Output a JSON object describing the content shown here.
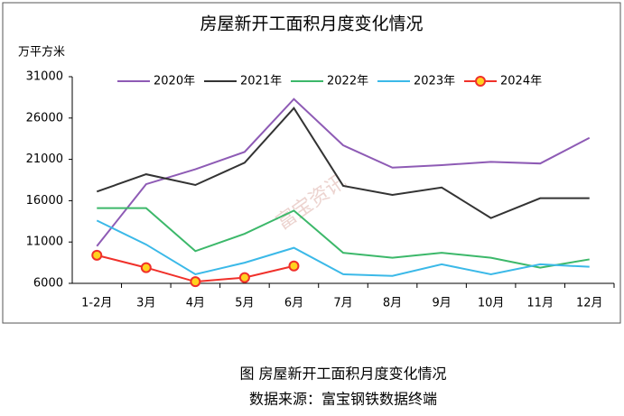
{
  "chart_data": {
    "type": "line",
    "title": "房屋新开工面积月度变化情况",
    "y_label": "万平方米",
    "watermark": "富宝资讯",
    "categories": [
      "1-2月",
      "3月",
      "4月",
      "5月",
      "6月",
      "7月",
      "8月",
      "9月",
      "10月",
      "11月",
      "12月"
    ],
    "series": [
      {
        "name": "2020年",
        "color": "#8e5bb5",
        "values": [
          10500,
          18000,
          19800,
          21900,
          28300,
          22700,
          20000,
          20300,
          20700,
          20500,
          23600
        ]
      },
      {
        "name": "2021年",
        "color": "#333333",
        "values": [
          17100,
          19200,
          17900,
          20600,
          27200,
          17800,
          16700,
          17600,
          13900,
          16300,
          16300
        ]
      },
      {
        "name": "2022年",
        "color": "#3cb86a",
        "values": [
          15100,
          15100,
          9900,
          12000,
          14800,
          9700,
          9100,
          9700,
          9100,
          7900,
          8900
        ]
      },
      {
        "name": "2023年",
        "color": "#3bb9e8",
        "values": [
          13600,
          10700,
          7100,
          8500,
          10300,
          7100,
          6900,
          8300,
          7100,
          8300,
          8000
        ]
      },
      {
        "name": "2024年",
        "color": "#f0302a",
        "marker": "circle",
        "marker_fill": "#ffd21f",
        "values": [
          9400,
          7900,
          6200,
          6700,
          8100,
          null,
          null,
          null,
          null,
          null,
          null
        ]
      }
    ],
    "ylim": [
      6000,
      31000
    ],
    "yticks": [
      6000,
      11000,
      16000,
      21000,
      26000,
      31000
    ],
    "legend": "top",
    "caption": [
      "图  房屋新开工面积月度变化情况",
      "数据来源：富宝钢铁数据终端"
    ]
  }
}
